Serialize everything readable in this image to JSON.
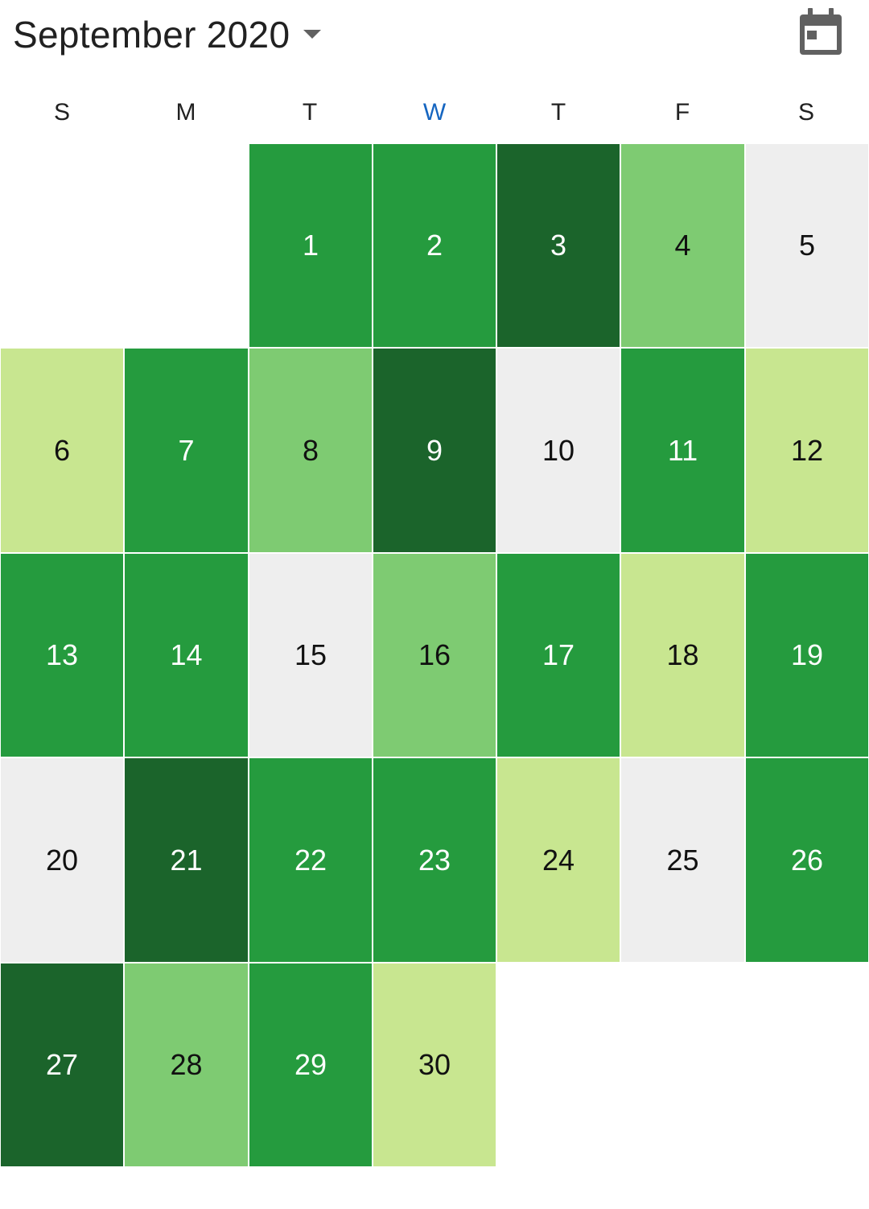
{
  "header": {
    "title": "September 2020",
    "dropdown_icon": "arrow-drop-down-icon",
    "today_icon": "calendar-today-icon"
  },
  "weekdays": [
    "S",
    "M",
    "T",
    "W",
    "T",
    "F",
    "S"
  ],
  "current_weekday_index": 3,
  "colors": {
    "level0": "#eeeeee",
    "level1": "#c8e690",
    "level2": "#7ecb72",
    "level3": "#259b3e",
    "level4": "#1b642b",
    "dark_text": "#111111",
    "light_text": "#ffffff",
    "accent": "#1565c0",
    "icon": "#616161"
  },
  "calendar": {
    "first_weekday": 2,
    "days": [
      {
        "day": "1",
        "level": 3
      },
      {
        "day": "2",
        "level": 3
      },
      {
        "day": "3",
        "level": 4
      },
      {
        "day": "4",
        "level": 2
      },
      {
        "day": "5",
        "level": 0
      },
      {
        "day": "6",
        "level": 1
      },
      {
        "day": "7",
        "level": 3
      },
      {
        "day": "8",
        "level": 2
      },
      {
        "day": "9",
        "level": 4
      },
      {
        "day": "10",
        "level": 0
      },
      {
        "day": "11",
        "level": 3
      },
      {
        "day": "12",
        "level": 1
      },
      {
        "day": "13",
        "level": 3
      },
      {
        "day": "14",
        "level": 3
      },
      {
        "day": "15",
        "level": 0
      },
      {
        "day": "16",
        "level": 2
      },
      {
        "day": "17",
        "level": 3
      },
      {
        "day": "18",
        "level": 1
      },
      {
        "day": "19",
        "level": 3
      },
      {
        "day": "20",
        "level": 0
      },
      {
        "day": "21",
        "level": 4
      },
      {
        "day": "22",
        "level": 3
      },
      {
        "day": "23",
        "level": 3
      },
      {
        "day": "24",
        "level": 1
      },
      {
        "day": "25",
        "level": 0
      },
      {
        "day": "26",
        "level": 3
      },
      {
        "day": "27",
        "level": 4
      },
      {
        "day": "28",
        "level": 2
      },
      {
        "day": "29",
        "level": 3
      },
      {
        "day": "30",
        "level": 1
      }
    ]
  }
}
